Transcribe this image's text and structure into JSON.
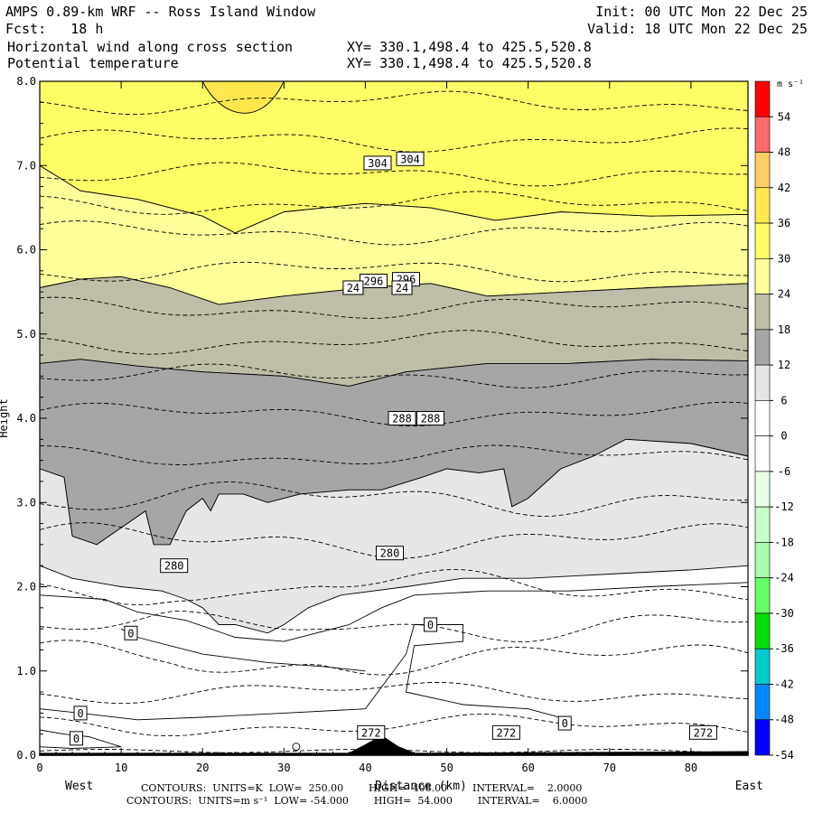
{
  "header": {
    "title": "AMPS 0.89-km WRF -- Ross Island Window",
    "forecast": "Fcst:   18 h",
    "init": "Init: 00 UTC Mon 22 Dec 25",
    "valid": "Valid: 18 UTC Mon 22 Dec 25",
    "field1": "Horizontal wind along cross section",
    "field1_xy": "XY= 330.1,498.4 to 425.5,520.8",
    "field2": "Potential temperature",
    "field2_xy": "XY= 330.1,498.4 to 425.5,520.8"
  },
  "footer": {
    "line1": "CONTOURS:  UNITS=K  LOW=  250.00        HIGH=  408.00        INTERVAL=    2.0000",
    "line2": "CONTOURS:  UNITS=m s⁻¹  LOW= -54.000        HIGH=  54.000        INTERVAL=    6.0000"
  },
  "chart_data": {
    "type": "contour",
    "xlabel": "Distance (km)",
    "ylabel": "Height",
    "x_left_label": "West",
    "x_right_label": "East",
    "xlim": [
      0,
      87
    ],
    "ylim": [
      0,
      8
    ],
    "x_ticks": [
      0,
      10,
      20,
      30,
      40,
      50,
      60,
      70,
      80
    ],
    "y_ticks": [
      "0.0",
      "1.0",
      "2.0",
      "3.0",
      "4.0",
      "5.0",
      "6.0",
      "7.0",
      "8.0"
    ],
    "colorbar": {
      "unit": "m s⁻¹",
      "labels": [
        54,
        48,
        42,
        36,
        30,
        24,
        18,
        12,
        6,
        0,
        -6,
        -12,
        -18,
        -24,
        -30,
        -36,
        -42,
        -48,
        -54
      ],
      "colors": [
        "#ff0000",
        "#ff6a6a",
        "#ffcc66",
        "#ffe84d",
        "#fdfd66",
        "#ffff99",
        "#bebda8",
        "#a6a6a6",
        "#e6e6e6",
        "#ffffff",
        "#ffffff",
        "#e6ffe6",
        "#c8ffc8",
        "#aaffaa",
        "#66ff66",
        "#00dd00",
        "#00cccc",
        "#0088ff",
        "#0000ff"
      ]
    },
    "wind_bands": [
      {
        "range": "24 to 30",
        "color": "#ffff99",
        "upper": [
          [
            0,
            7.0
          ],
          [
            5,
            6.7
          ],
          [
            12,
            6.6
          ],
          [
            20,
            6.4
          ],
          [
            24,
            6.2
          ],
          [
            30,
            6.45
          ],
          [
            40,
            6.55
          ],
          [
            48,
            6.5
          ],
          [
            56,
            6.35
          ],
          [
            64,
            6.45
          ],
          [
            75,
            6.4
          ],
          [
            87,
            6.42
          ]
        ],
        "lower": [
          [
            0,
            5.55
          ],
          [
            5,
            5.65
          ],
          [
            10,
            5.68
          ],
          [
            16,
            5.55
          ],
          [
            22,
            5.35
          ],
          [
            30,
            5.45
          ],
          [
            40,
            5.55
          ],
          [
            48,
            5.6
          ],
          [
            55,
            5.45
          ],
          [
            65,
            5.5
          ],
          [
            75,
            5.55
          ],
          [
            87,
            5.6
          ]
        ]
      },
      {
        "range": "30 to 36",
        "color": "#fdfd66",
        "upper": [
          [
            0,
            8.0
          ],
          [
            20,
            8.0
          ],
          [
            30,
            8.0
          ],
          [
            87,
            8.0
          ]
        ],
        "lower": [
          [
            0,
            7.0
          ],
          [
            5,
            6.7
          ],
          [
            12,
            6.6
          ],
          [
            20,
            6.4
          ],
          [
            24,
            6.2
          ],
          [
            30,
            6.45
          ],
          [
            40,
            6.55
          ],
          [
            48,
            6.5
          ],
          [
            56,
            6.35
          ],
          [
            64,
            6.45
          ],
          [
            75,
            6.4
          ],
          [
            87,
            6.42
          ]
        ]
      },
      {
        "range": "18 to 24",
        "color": "#bebda8",
        "upper": [
          [
            0,
            5.55
          ],
          [
            5,
            5.65
          ],
          [
            10,
            5.68
          ],
          [
            16,
            5.55
          ],
          [
            22,
            5.35
          ],
          [
            30,
            5.45
          ],
          [
            40,
            5.55
          ],
          [
            48,
            5.6
          ],
          [
            55,
            5.45
          ],
          [
            65,
            5.5
          ],
          [
            75,
            5.55
          ],
          [
            87,
            5.6
          ]
        ],
        "lower": [
          [
            0,
            4.65
          ],
          [
            5,
            4.7
          ],
          [
            12,
            4.62
          ],
          [
            20,
            4.55
          ],
          [
            30,
            4.5
          ],
          [
            38,
            4.38
          ],
          [
            45,
            4.55
          ],
          [
            55,
            4.65
          ],
          [
            65,
            4.65
          ],
          [
            75,
            4.7
          ],
          [
            87,
            4.68
          ]
        ]
      },
      {
        "range": "12 to 18",
        "color": "#a6a6a6",
        "upper": [
          [
            0,
            4.65
          ],
          [
            5,
            4.7
          ],
          [
            12,
            4.62
          ],
          [
            20,
            4.55
          ],
          [
            30,
            4.5
          ],
          [
            38,
            4.38
          ],
          [
            45,
            4.55
          ],
          [
            55,
            4.65
          ],
          [
            65,
            4.65
          ],
          [
            75,
            4.7
          ],
          [
            87,
            4.68
          ]
        ],
        "lower": [
          [
            0,
            3.4
          ],
          [
            3,
            3.3
          ],
          [
            4,
            2.6
          ],
          [
            7,
            2.5
          ],
          [
            10,
            2.7
          ],
          [
            13,
            2.9
          ],
          [
            14,
            2.5
          ],
          [
            16,
            2.5
          ],
          [
            18,
            2.9
          ],
          [
            20,
            3.05
          ],
          [
            21,
            2.9
          ],
          [
            22,
            3.1
          ],
          [
            25,
            3.1
          ],
          [
            28,
            3.0
          ],
          [
            32,
            3.1
          ],
          [
            38,
            3.15
          ],
          [
            42,
            3.15
          ],
          [
            47,
            3.3
          ],
          [
            50,
            3.4
          ],
          [
            54,
            3.35
          ],
          [
            57,
            3.4
          ],
          [
            58,
            2.95
          ],
          [
            60,
            3.05
          ],
          [
            64,
            3.4
          ],
          [
            68,
            3.55
          ],
          [
            72,
            3.75
          ],
          [
            80,
            3.7
          ],
          [
            87,
            3.55
          ]
        ]
      },
      {
        "range": "6 to 12",
        "color": "#e6e6e6",
        "upper": [
          [
            0,
            3.4
          ],
          [
            3,
            3.3
          ],
          [
            4,
            2.6
          ],
          [
            7,
            2.5
          ],
          [
            10,
            2.7
          ],
          [
            13,
            2.9
          ],
          [
            14,
            2.5
          ],
          [
            16,
            2.5
          ],
          [
            18,
            2.9
          ],
          [
            20,
            3.05
          ],
          [
            21,
            2.9
          ],
          [
            22,
            3.1
          ],
          [
            25,
            3.1
          ],
          [
            28,
            3.0
          ],
          [
            32,
            3.1
          ],
          [
            38,
            3.15
          ],
          [
            42,
            3.15
          ],
          [
            47,
            3.3
          ],
          [
            50,
            3.4
          ],
          [
            54,
            3.35
          ],
          [
            57,
            3.4
          ],
          [
            58,
            2.95
          ],
          [
            60,
            3.05
          ],
          [
            64,
            3.4
          ],
          [
            68,
            3.55
          ],
          [
            72,
            3.75
          ],
          [
            80,
            3.7
          ],
          [
            87,
            3.55
          ]
        ],
        "lower": [
          [
            0,
            2.25
          ],
          [
            4,
            2.1
          ],
          [
            10,
            2.0
          ],
          [
            15,
            1.95
          ],
          [
            18,
            1.85
          ],
          [
            20,
            1.75
          ],
          [
            22,
            1.55
          ],
          [
            24,
            1.55
          ],
          [
            26,
            1.5
          ],
          [
            28,
            1.45
          ],
          [
            30,
            1.55
          ],
          [
            33,
            1.75
          ],
          [
            37,
            1.9
          ],
          [
            45,
            2.0
          ],
          [
            52,
            2.1
          ],
          [
            60,
            2.1
          ],
          [
            70,
            2.15
          ],
          [
            80,
            2.2
          ],
          [
            87,
            2.25
          ]
        ]
      }
    ],
    "isentropes": {
      "unit": "K",
      "levels": [
        272,
        274,
        276,
        278,
        280,
        282,
        284,
        286,
        288,
        290,
        292,
        294,
        296,
        298,
        300,
        302,
        304,
        306,
        308
      ],
      "heights_at_x0": [
        0.05,
        0.35,
        0.75,
        1.15,
        1.55,
        2.0,
        2.55,
        3.05,
        3.55,
        4.05,
        4.5,
        4.9,
        5.3,
        5.75,
        6.2,
        6.55,
        6.9,
        7.3,
        7.75
      ],
      "labeled": [
        {
          "x": 40.7,
          "y": 0.27,
          "text": "272"
        },
        {
          "x": 57.3,
          "y": 0.27,
          "text": "272"
        },
        {
          "x": 81.5,
          "y": 0.27,
          "text": "272"
        },
        {
          "x": 16.5,
          "y": 2.25,
          "text": "280"
        },
        {
          "x": 43.0,
          "y": 2.4,
          "text": "280"
        },
        {
          "x": 44.5,
          "y": 4.0,
          "text": "288"
        },
        {
          "x": 48.0,
          "y": 4.0,
          "text": "288"
        },
        {
          "x": 41.0,
          "y": 5.63,
          "text": "296"
        },
        {
          "x": 45.0,
          "y": 5.65,
          "text": "296"
        },
        {
          "x": 41.5,
          "y": 7.03,
          "text": "304"
        },
        {
          "x": 45.5,
          "y": 7.08,
          "text": "304"
        }
      ]
    },
    "wind_zero_labels": [
      {
        "x": 11.2,
        "y": 1.45,
        "text": "0"
      },
      {
        "x": 48.0,
        "y": 1.55,
        "text": "0"
      },
      {
        "x": 5.0,
        "y": 0.5,
        "text": "0"
      },
      {
        "x": 4.5,
        "y": 0.2,
        "text": "0"
      },
      {
        "x": 64.5,
        "y": 0.38,
        "text": "0"
      }
    ],
    "wind_24_labels": [
      {
        "x": 38.5,
        "y": 5.55,
        "text": "24"
      },
      {
        "x": 44.5,
        "y": 5.55,
        "text": "24"
      }
    ],
    "terrain": [
      [
        0,
        0.02
      ],
      [
        38,
        0.02
      ],
      [
        40,
        0.12
      ],
      [
        42,
        0.23
      ],
      [
        44,
        0.1
      ],
      [
        46,
        0.02
      ],
      [
        87,
        0.04
      ]
    ]
  }
}
